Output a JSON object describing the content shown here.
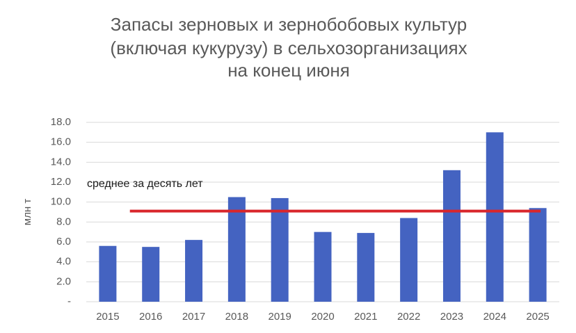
{
  "chart_data": {
    "type": "bar",
    "title": [
      "Запасы зерновых  и зернобобовых культур",
      "(включая кукурузу)  в сельхозорганизациях",
      "на конец июня"
    ],
    "y_axis_label": "млн  т",
    "categories": [
      "2015",
      "2016",
      "2017",
      "2018",
      "2019",
      "2020",
      "2021",
      "2022",
      "2023",
      "2024",
      "2025"
    ],
    "values": [
      5.6,
      5.5,
      6.2,
      10.5,
      10.4,
      7.0,
      6.9,
      8.4,
      13.2,
      17.0,
      9.4
    ],
    "color": "#4463c1",
    "ylim": [
      0,
      18
    ],
    "yticks": [
      {
        "value": 0,
        "label": "-"
      },
      {
        "value": 2,
        "label": "2.0"
      },
      {
        "value": 4,
        "label": "4.0"
      },
      {
        "value": 6,
        "label": "6.0"
      },
      {
        "value": 8,
        "label": "8.0"
      },
      {
        "value": 10,
        "label": "10.0"
      },
      {
        "value": 12,
        "label": "12.0"
      },
      {
        "value": 14,
        "label": "14.0"
      },
      {
        "value": 16,
        "label": "16.0"
      },
      {
        "value": 18,
        "label": "18.0"
      }
    ],
    "grid": true,
    "reference_line": {
      "label": "среднее за десять лет",
      "value": 9.1,
      "color": "#d9262b"
    }
  }
}
